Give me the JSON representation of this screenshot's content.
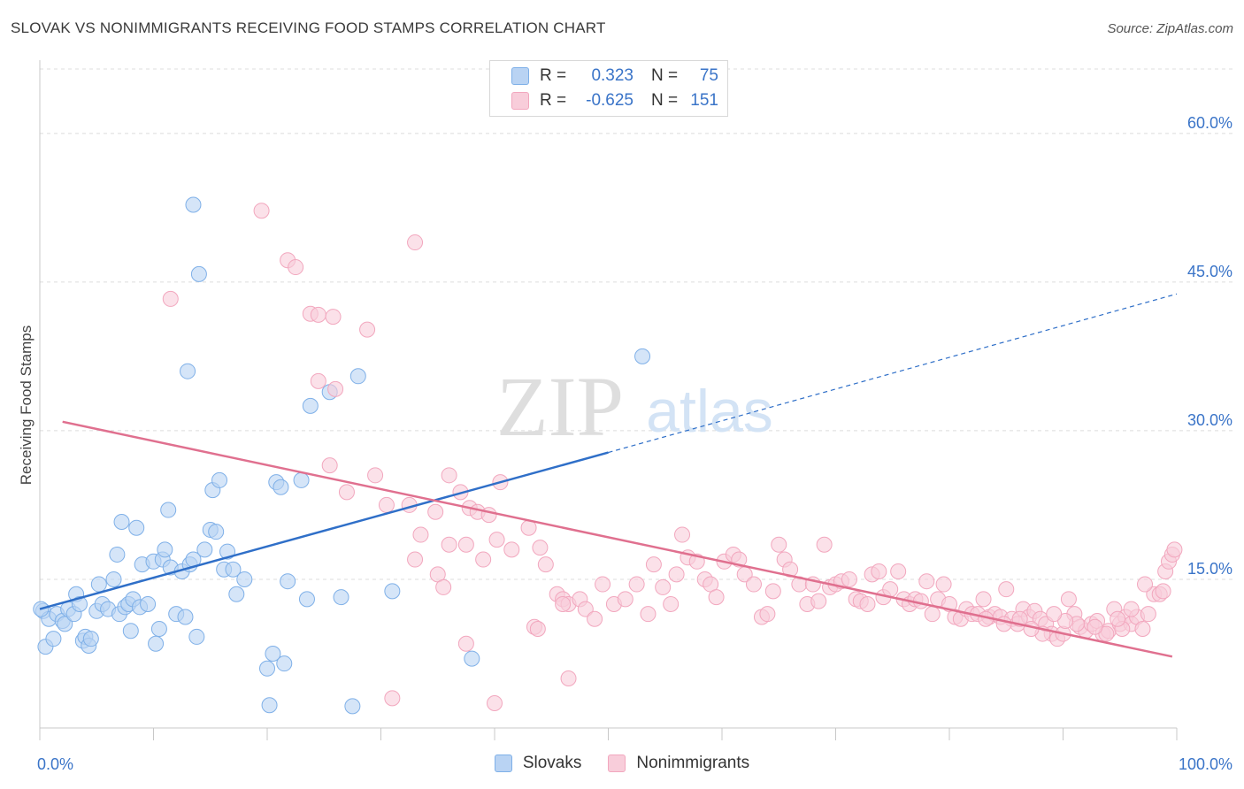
{
  "header": {
    "title": "SLOVAK VS NONIMMIGRANTS RECEIVING FOOD STAMPS CORRELATION CHART",
    "source": "Source: ZipAtlas.com"
  },
  "watermark": {
    "zip": "ZIP",
    "atlas": "atlas"
  },
  "stats_legend": {
    "rows": [
      {
        "r_label": "R =",
        "r_value": "0.323",
        "n_label": "N =",
        "n_value": "75",
        "color": "#7fb0e8"
      },
      {
        "r_label": "R =",
        "r_value": "-0.625",
        "n_label": "N =",
        "n_value": "151",
        "color": "#f2a7be"
      }
    ]
  },
  "chart_data": {
    "type": "scatter",
    "title": "SLOVAK VS NONIMMIGRANTS RECEIVING FOOD STAMPS CORRELATION CHART",
    "ylabel": "Receiving Food Stamps",
    "xlabel": "",
    "xlim": [
      0,
      100
    ],
    "ylim": [
      0,
      66.5
    ],
    "x_tick_labels": [
      "0.0%",
      "100.0%"
    ],
    "y_ticks": [
      15,
      30,
      45,
      60
    ],
    "y_tick_labels": [
      "15.0%",
      "30.0%",
      "45.0%",
      "60.0%"
    ],
    "grid": "horizontal dashed",
    "legend_position": "bottom-center",
    "series": [
      {
        "name": "Slovaks",
        "color": "#7fb0e8",
        "fill": "#b9d3f3",
        "trend": {
          "x0": 0,
          "y0": 12.0,
          "x1": 50,
          "y1": 27.8,
          "dashed_to_x": 100,
          "dashed_to_y": 43.8,
          "color": "#2f6fc8"
        },
        "points": [
          [
            0.3,
            11.8
          ],
          [
            0.5,
            8.2
          ],
          [
            0.8,
            11.0
          ],
          [
            1.2,
            9.0
          ],
          [
            1.5,
            11.5
          ],
          [
            2.0,
            10.8
          ],
          [
            2.2,
            10.5
          ],
          [
            2.5,
            12.0
          ],
          [
            3.0,
            11.5
          ],
          [
            3.2,
            13.5
          ],
          [
            3.5,
            12.5
          ],
          [
            3.8,
            8.8
          ],
          [
            4.0,
            9.2
          ],
          [
            4.3,
            8.3
          ],
          [
            4.5,
            9.0
          ],
          [
            5.0,
            11.8
          ],
          [
            5.2,
            14.5
          ],
          [
            5.5,
            12.5
          ],
          [
            6.0,
            12.0
          ],
          [
            6.5,
            15.0
          ],
          [
            6.8,
            17.5
          ],
          [
            7.0,
            11.5
          ],
          [
            7.2,
            20.8
          ],
          [
            7.5,
            12.2
          ],
          [
            7.8,
            12.5
          ],
          [
            8.0,
            9.8
          ],
          [
            8.2,
            13.0
          ],
          [
            8.5,
            20.2
          ],
          [
            8.8,
            12.2
          ],
          [
            9.0,
            16.5
          ],
          [
            9.5,
            12.5
          ],
          [
            10.0,
            16.8
          ],
          [
            10.2,
            8.5
          ],
          [
            10.5,
            10.0
          ],
          [
            10.8,
            17.0
          ],
          [
            11.0,
            18.0
          ],
          [
            11.3,
            22.0
          ],
          [
            11.5,
            16.2
          ],
          [
            12.0,
            11.5
          ],
          [
            12.5,
            15.8
          ],
          [
            12.8,
            11.2
          ],
          [
            13.2,
            16.5
          ],
          [
            13.5,
            17.0
          ],
          [
            13.8,
            9.2
          ],
          [
            14.5,
            18.0
          ],
          [
            15.0,
            20.0
          ],
          [
            15.2,
            24.0
          ],
          [
            15.5,
            19.8
          ],
          [
            15.8,
            25.0
          ],
          [
            16.2,
            16.0
          ],
          [
            16.5,
            17.8
          ],
          [
            17.0,
            16.0
          ],
          [
            17.3,
            13.5
          ],
          [
            18.0,
            15.0
          ],
          [
            20.0,
            6.0
          ],
          [
            20.2,
            2.3
          ],
          [
            20.5,
            7.5
          ],
          [
            20.8,
            24.8
          ],
          [
            21.2,
            24.3
          ],
          [
            21.5,
            6.5
          ],
          [
            21.8,
            14.8
          ],
          [
            23.0,
            25.0
          ],
          [
            23.5,
            13.0
          ],
          [
            23.8,
            32.5
          ],
          [
            25.5,
            33.9
          ],
          [
            26.5,
            13.2
          ],
          [
            27.5,
            2.2
          ],
          [
            28.0,
            35.5
          ],
          [
            31.0,
            13.8
          ],
          [
            38.0,
            7.0
          ],
          [
            13.0,
            36.0
          ],
          [
            14.0,
            45.8
          ],
          [
            13.5,
            52.8
          ],
          [
            53.0,
            37.5
          ],
          [
            0.1,
            12.0
          ]
        ]
      },
      {
        "name": "Nonimmigrants",
        "color": "#f2a7be",
        "fill": "#f8cdda",
        "trend": {
          "x0": 2,
          "y0": 30.9,
          "x1": 99.6,
          "y1": 7.2,
          "color": "#e0708f"
        },
        "points": [
          [
            19.5,
            52.2
          ],
          [
            33.0,
            49.0
          ],
          [
            21.8,
            47.2
          ],
          [
            22.5,
            46.5
          ],
          [
            11.5,
            43.3
          ],
          [
            23.8,
            41.8
          ],
          [
            24.5,
            41.7
          ],
          [
            25.8,
            41.5
          ],
          [
            28.8,
            40.2
          ],
          [
            24.5,
            35.0
          ],
          [
            26.0,
            34.2
          ],
          [
            25.5,
            26.5
          ],
          [
            27.0,
            23.8
          ],
          [
            29.5,
            25.5
          ],
          [
            30.5,
            22.5
          ],
          [
            32.5,
            22.5
          ],
          [
            33.5,
            19.5
          ],
          [
            34.8,
            21.8
          ],
          [
            36.0,
            25.5
          ],
          [
            37.0,
            23.8
          ],
          [
            37.8,
            22.2
          ],
          [
            38.5,
            21.8
          ],
          [
            39.5,
            21.5
          ],
          [
            40.5,
            24.8
          ],
          [
            36.0,
            18.5
          ],
          [
            37.5,
            18.5
          ],
          [
            39.0,
            17.0
          ],
          [
            33.0,
            17.0
          ],
          [
            35.0,
            15.5
          ],
          [
            35.5,
            14.2
          ],
          [
            41.5,
            18.0
          ],
          [
            43.0,
            20.2
          ],
          [
            44.0,
            18.2
          ],
          [
            44.5,
            16.5
          ],
          [
            45.5,
            13.5
          ],
          [
            46.0,
            13.0
          ],
          [
            46.5,
            12.5
          ],
          [
            47.5,
            13.0
          ],
          [
            48.0,
            12.0
          ],
          [
            48.8,
            11.0
          ],
          [
            49.5,
            14.5
          ],
          [
            50.5,
            12.5
          ],
          [
            51.5,
            13.0
          ],
          [
            52.5,
            14.5
          ],
          [
            53.5,
            11.5
          ],
          [
            54.0,
            16.5
          ],
          [
            54.8,
            14.2
          ],
          [
            55.5,
            12.5
          ],
          [
            56.0,
            15.5
          ],
          [
            56.5,
            19.5
          ],
          [
            57.0,
            17.2
          ],
          [
            57.8,
            16.8
          ],
          [
            58.5,
            15.0
          ],
          [
            59.0,
            14.5
          ],
          [
            59.5,
            13.2
          ],
          [
            60.2,
            16.8
          ],
          [
            61.0,
            17.5
          ],
          [
            61.5,
            17.0
          ],
          [
            62.0,
            15.5
          ],
          [
            62.8,
            14.5
          ],
          [
            63.5,
            11.2
          ],
          [
            64.0,
            11.5
          ],
          [
            64.5,
            13.8
          ],
          [
            65.0,
            18.5
          ],
          [
            65.5,
            17.0
          ],
          [
            66.0,
            16.0
          ],
          [
            66.8,
            14.5
          ],
          [
            67.5,
            12.5
          ],
          [
            68.0,
            14.5
          ],
          [
            68.5,
            12.8
          ],
          [
            69.0,
            18.5
          ],
          [
            69.5,
            14.2
          ],
          [
            70.0,
            14.5
          ],
          [
            70.5,
            14.8
          ],
          [
            71.2,
            15.0
          ],
          [
            71.8,
            13.0
          ],
          [
            72.2,
            12.8
          ],
          [
            72.8,
            12.5
          ],
          [
            73.2,
            15.5
          ],
          [
            73.8,
            15.8
          ],
          [
            74.2,
            13.2
          ],
          [
            74.8,
            14.0
          ],
          [
            75.5,
            15.8
          ],
          [
            76.0,
            13.0
          ],
          [
            76.5,
            12.5
          ],
          [
            77.0,
            13.0
          ],
          [
            77.5,
            12.8
          ],
          [
            78.0,
            14.8
          ],
          [
            78.5,
            11.5
          ],
          [
            79.0,
            13.0
          ],
          [
            79.5,
            14.5
          ],
          [
            80.0,
            12.5
          ],
          [
            80.5,
            11.2
          ],
          [
            81.0,
            11.0
          ],
          [
            81.5,
            12.0
          ],
          [
            82.0,
            11.5
          ],
          [
            82.5,
            11.5
          ],
          [
            83.0,
            13.0
          ],
          [
            83.5,
            11.2
          ],
          [
            84.0,
            11.5
          ],
          [
            84.5,
            11.2
          ],
          [
            85.0,
            14.0
          ],
          [
            85.5,
            11.0
          ],
          [
            86.0,
            10.5
          ],
          [
            86.5,
            12.0
          ],
          [
            87.0,
            11.2
          ],
          [
            87.5,
            11.8
          ],
          [
            88.0,
            11.0
          ],
          [
            88.5,
            10.5
          ],
          [
            89.0,
            9.5
          ],
          [
            89.5,
            9.0
          ],
          [
            90.0,
            9.5
          ],
          [
            90.5,
            13.0
          ],
          [
            91.0,
            11.5
          ],
          [
            91.5,
            10.2
          ],
          [
            92.0,
            9.8
          ],
          [
            92.5,
            10.5
          ],
          [
            93.0,
            10.8
          ],
          [
            93.5,
            9.5
          ],
          [
            94.0,
            9.8
          ],
          [
            94.5,
            12.0
          ],
          [
            95.0,
            10.5
          ],
          [
            95.5,
            11.2
          ],
          [
            96.0,
            10.5
          ],
          [
            96.5,
            11.2
          ],
          [
            97.0,
            10.0
          ],
          [
            97.5,
            11.5
          ],
          [
            98.0,
            13.5
          ],
          [
            98.5,
            13.5
          ],
          [
            98.8,
            13.8
          ],
          [
            99.0,
            15.8
          ],
          [
            99.3,
            16.8
          ],
          [
            99.6,
            17.5
          ],
          [
            99.8,
            18.0
          ],
          [
            97.2,
            14.5
          ],
          [
            96.0,
            12.0
          ],
          [
            95.2,
            10.0
          ],
          [
            94.8,
            11.0
          ],
          [
            93.8,
            9.5
          ],
          [
            92.8,
            10.2
          ],
          [
            91.2,
            10.5
          ],
          [
            90.2,
            10.8
          ],
          [
            89.2,
            11.5
          ],
          [
            88.2,
            9.5
          ],
          [
            87.2,
            10.0
          ],
          [
            86.2,
            11.0
          ],
          [
            84.8,
            10.5
          ],
          [
            83.2,
            11.0
          ],
          [
            31.0,
            3.0
          ],
          [
            40.0,
            2.5
          ],
          [
            46.5,
            5.0
          ],
          [
            37.5,
            8.5
          ],
          [
            43.5,
            10.2
          ],
          [
            43.8,
            10.0
          ],
          [
            40.2,
            19.0
          ],
          [
            46.0,
            12.5
          ]
        ]
      }
    ]
  },
  "bottom_legend": {
    "items": [
      {
        "label": "Slovaks",
        "color": "#7fb0e8",
        "fill": "#b9d3f3"
      },
      {
        "label": "Nonimmigrants",
        "color": "#f2a7be",
        "fill": "#f8cdda"
      }
    ]
  }
}
